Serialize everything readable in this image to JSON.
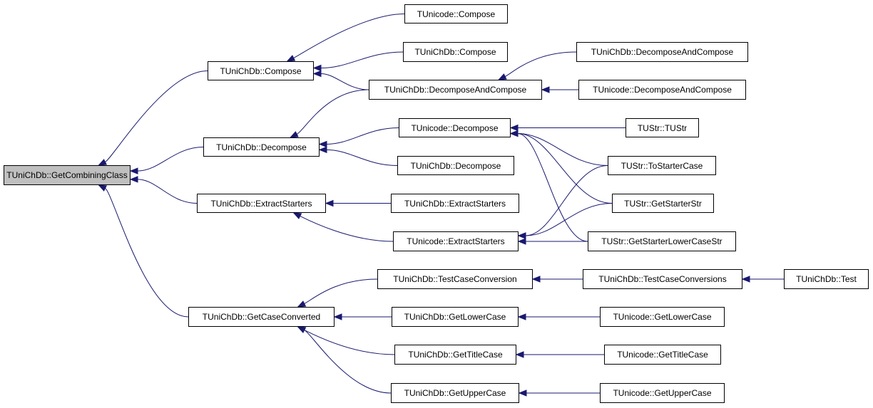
{
  "edge_color": "#191970",
  "root_fill": "#bfbfbf",
  "nodes": [
    {
      "id": "root",
      "label": "TUniChDb::GetCombiningClass"
    },
    {
      "id": "c1",
      "label": "TUniChDb::Compose"
    },
    {
      "id": "d1",
      "label": "TUniChDb::Decompose"
    },
    {
      "id": "e1",
      "label": "TUniChDb::ExtractStarters"
    },
    {
      "id": "g1",
      "label": "TUniChDb::GetCaseConverted"
    },
    {
      "id": "uc",
      "label": "TUnicode::Compose"
    },
    {
      "id": "c2",
      "label": "TUniChDb::Compose"
    },
    {
      "id": "dc1",
      "label": "TUniChDb::DecomposeAndCompose"
    },
    {
      "id": "dc2",
      "label": "TUniChDb::DecomposeAndCompose"
    },
    {
      "id": "udc",
      "label": "TUnicode::DecomposeAndCompose"
    },
    {
      "id": "ud",
      "label": "TUnicode::Decompose"
    },
    {
      "id": "d2",
      "label": "TUniChDb::Decompose"
    },
    {
      "id": "e2",
      "label": "TUniChDb::ExtractStarters"
    },
    {
      "id": "ue",
      "label": "TUnicode::ExtractStarters"
    },
    {
      "id": "tus",
      "label": "TUStr::TUStr"
    },
    {
      "id": "tsc",
      "label": "TUStr::ToStarterCase"
    },
    {
      "id": "gss",
      "label": "TUStr::GetStarterStr"
    },
    {
      "id": "gslc",
      "label": "TUStr::GetStarterLowerCaseStr"
    },
    {
      "id": "tcc",
      "label": "TUniChDb::TestCaseConversion"
    },
    {
      "id": "tccs",
      "label": "TUniChDb::TestCaseConversions"
    },
    {
      "id": "test",
      "label": "TUniChDb::Test"
    },
    {
      "id": "glc",
      "label": "TUniChDb::GetLowerCase"
    },
    {
      "id": "uglc",
      "label": "TUnicode::GetLowerCase"
    },
    {
      "id": "gtc",
      "label": "TUniChDb::GetTitleCase"
    },
    {
      "id": "ugtc",
      "label": "TUnicode::GetTitleCase"
    },
    {
      "id": "guc",
      "label": "TUniChDb::GetUpperCase"
    },
    {
      "id": "uguc",
      "label": "TUnicode::GetUpperCase"
    }
  ],
  "edges": [
    [
      "c1",
      "root"
    ],
    [
      "d1",
      "root"
    ],
    [
      "e1",
      "root"
    ],
    [
      "g1",
      "root"
    ],
    [
      "uc",
      "c1"
    ],
    [
      "c2",
      "c1"
    ],
    [
      "dc1",
      "c1"
    ],
    [
      "dc1",
      "d1"
    ],
    [
      "ud",
      "d1"
    ],
    [
      "d2",
      "d1"
    ],
    [
      "e2",
      "e1"
    ],
    [
      "ue",
      "e1"
    ],
    [
      "dc2",
      "dc1"
    ],
    [
      "udc",
      "dc1"
    ],
    [
      "tus",
      "ud"
    ],
    [
      "tsc",
      "ud"
    ],
    [
      "gss",
      "ud"
    ],
    [
      "gslc",
      "ud"
    ],
    [
      "tsc",
      "ue"
    ],
    [
      "gss",
      "ue"
    ],
    [
      "gslc",
      "ue"
    ],
    [
      "tcc",
      "g1"
    ],
    [
      "glc",
      "g1"
    ],
    [
      "gtc",
      "g1"
    ],
    [
      "guc",
      "g1"
    ],
    [
      "tccs",
      "tcc"
    ],
    [
      "test",
      "tccs"
    ],
    [
      "uglc",
      "glc"
    ],
    [
      "ugtc",
      "gtc"
    ],
    [
      "uguc",
      "guc"
    ]
  ]
}
